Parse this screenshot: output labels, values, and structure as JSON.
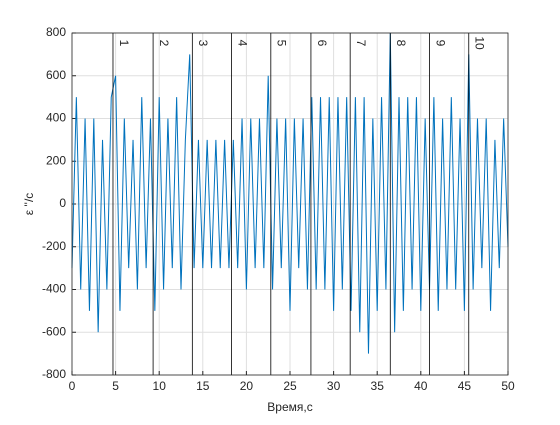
{
  "chart_data": {
    "type": "line",
    "xlabel": "Время,с",
    "ylabel": "ε ''/с",
    "x": [
      0,
      0.5,
      1,
      1.5,
      2,
      2.5,
      3,
      3.5,
      4,
      4.5,
      5,
      5.5,
      6,
      6.5,
      7,
      7.5,
      8,
      8.5,
      9,
      9.5,
      10,
      10.5,
      11,
      11.5,
      12,
      12.5,
      13,
      13.5,
      14,
      14.5,
      15,
      15.5,
      16,
      16.5,
      17,
      17.5,
      18,
      18.5,
      19,
      19.5,
      20,
      20.5,
      21,
      21.5,
      22,
      22.5,
      23,
      23.5,
      24,
      24.5,
      25,
      25.5,
      26,
      26.5,
      27,
      27.5,
      28,
      28.5,
      29,
      29.5,
      30,
      30.5,
      31,
      31.5,
      32,
      32.5,
      33,
      33.5,
      34,
      34.5,
      35,
      35.5,
      36,
      36.5,
      37,
      37.5,
      38,
      38.5,
      39,
      39.5,
      40,
      40.5,
      41,
      41.5,
      42,
      42.5,
      43,
      43.5,
      44,
      44.5,
      45,
      45.5,
      46,
      46.5,
      47,
      47.5,
      48,
      48.5,
      49,
      49.5,
      50
    ],
    "series": [
      {
        "color": "#0072bd",
        "values": [
          -300,
          500,
          -400,
          400,
          -500,
          400,
          -600,
          300,
          -400,
          500,
          600,
          -500,
          400,
          -300,
          300,
          -400,
          500,
          -300,
          400,
          -500,
          500,
          -400,
          400,
          -300,
          500,
          -400,
          300,
          700,
          -300,
          300,
          -300,
          300,
          -300,
          300,
          -300,
          300,
          -300,
          300,
          -300,
          400,
          -400,
          400,
          -300,
          400,
          -300,
          600,
          -400,
          400,
          -300,
          400,
          -500,
          400,
          -300,
          400,
          -400,
          500,
          -400,
          500,
          -400,
          500,
          -500,
          500,
          -400,
          500,
          -500,
          500,
          -600,
          500,
          -700,
          400,
          -500,
          500,
          -400,
          800,
          -600,
          500,
          -500,
          500,
          -400,
          500,
          -500,
          400,
          -400,
          500,
          -500,
          400,
          -400,
          500,
          -400,
          400,
          -500,
          700,
          -400,
          400,
          -300,
          400,
          -500,
          300,
          -300,
          400,
          -200
        ]
      }
    ],
    "markers": [
      {
        "x": 4.7,
        "label": "1"
      },
      {
        "x": 9.3,
        "label": "2"
      },
      {
        "x": 13.8,
        "label": "3"
      },
      {
        "x": 18.3,
        "label": "4"
      },
      {
        "x": 22.8,
        "label": "5"
      },
      {
        "x": 27.4,
        "label": "6"
      },
      {
        "x": 31.9,
        "label": "7"
      },
      {
        "x": 36.5,
        "label": "8"
      },
      {
        "x": 41.0,
        "label": "9"
      },
      {
        "x": 45.5,
        "label": "10"
      }
    ],
    "xlim": [
      0,
      50
    ],
    "xticks": [
      0,
      5,
      10,
      15,
      20,
      25,
      30,
      35,
      40,
      45,
      50
    ],
    "ylim": [
      -800,
      800
    ],
    "yticks": [
      -800,
      -600,
      -400,
      -200,
      0,
      200,
      400,
      600,
      800
    ],
    "grid": true
  }
}
